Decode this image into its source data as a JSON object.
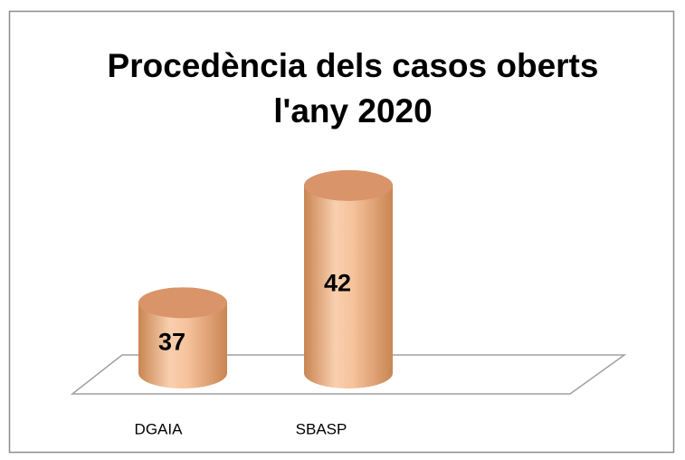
{
  "chart_data": {
    "type": "bar3d",
    "title": [
      "Procedència dels casos oberts",
      "l'any 2020"
    ],
    "categories": [
      "DGAIA",
      "SBASP"
    ],
    "values": [
      37,
      42
    ],
    "color": "#f0a878",
    "ylim": [
      34,
      43
    ]
  }
}
